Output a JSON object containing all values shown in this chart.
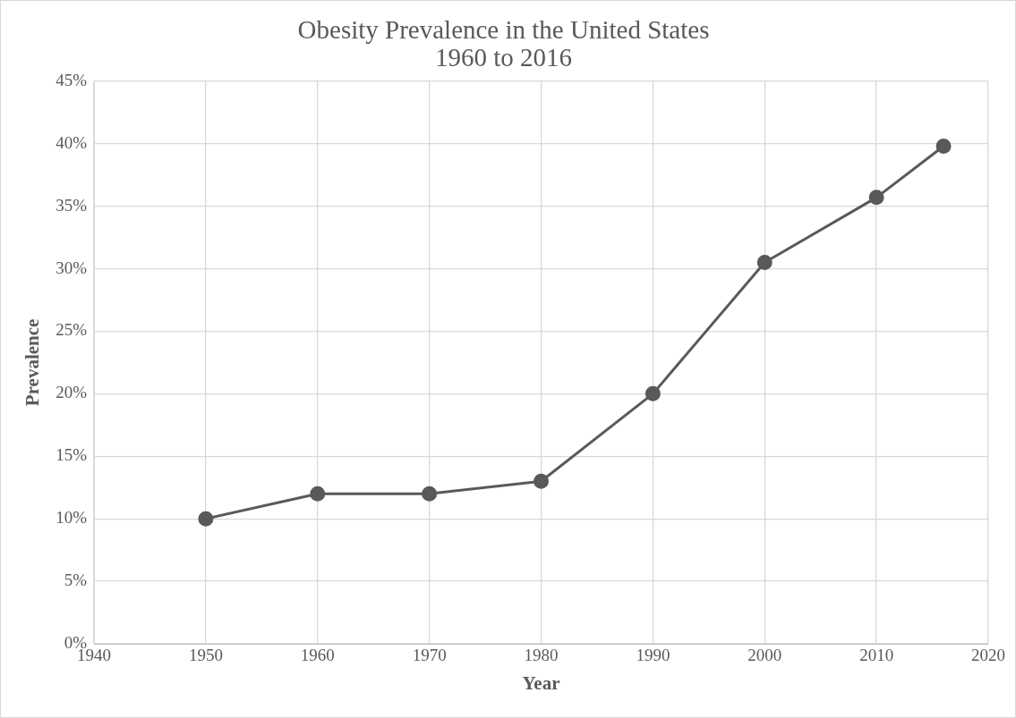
{
  "chart_data": {
    "type": "line",
    "title": [
      "Obesity Prevalence in the United States",
      "1960 to 2016"
    ],
    "xlabel": "Year",
    "ylabel": "Prevalence",
    "x": [
      1950,
      1960,
      1970,
      1980,
      1990,
      2000,
      2010,
      2016
    ],
    "series": [
      {
        "color": "#595959",
        "values": [
          10,
          12,
          12,
          13,
          20,
          30.5,
          35.7,
          39.8
        ]
      }
    ],
    "xlim": [
      1940,
      2020
    ],
    "xticks": [
      1940,
      1950,
      1960,
      1970,
      1980,
      1990,
      2000,
      2010,
      2020
    ],
    "ylim": [
      0,
      45
    ],
    "yticks": [
      {
        "value": 0,
        "label": "0%"
      },
      {
        "value": 5,
        "label": "5%"
      },
      {
        "value": 10,
        "label": "10%"
      },
      {
        "value": 15,
        "label": "15%"
      },
      {
        "value": 20,
        "label": "20%"
      },
      {
        "value": 25,
        "label": "25%"
      },
      {
        "value": 30,
        "label": "30%"
      },
      {
        "value": 35,
        "label": "35%"
      },
      {
        "value": 40,
        "label": "40%"
      },
      {
        "value": 45,
        "label": "45%"
      }
    ],
    "grid": true,
    "legend": false,
    "marker": "circle",
    "line_style": "solid"
  }
}
